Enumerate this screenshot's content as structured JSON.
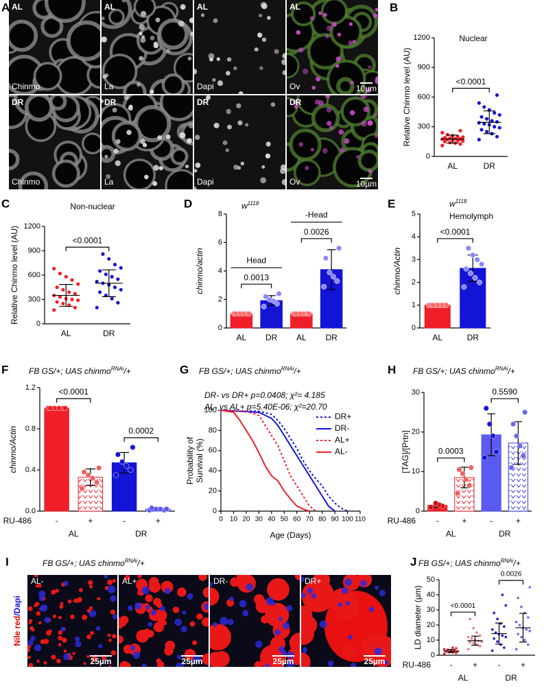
{
  "images": [
    {
      "panel": "A",
      "rows": [
        [
          {
            "condition": "AL",
            "channel": "Chinmo"
          },
          {
            "condition": "AL",
            "channel": "La"
          },
          {
            "condition": "AL",
            "channel": "Dapi"
          },
          {
            "condition": "AL",
            "channel": "Ov",
            "scale_bar": "10µm"
          }
        ],
        [
          {
            "condition": "DR",
            "channel": "Chinmo"
          },
          {
            "condition": "DR",
            "channel": "La"
          },
          {
            "condition": "DR",
            "channel": "Dapi"
          },
          {
            "condition": "DR",
            "channel": "Ov",
            "scale_bar": "10µm"
          }
        ]
      ]
    },
    {
      "panel": "I",
      "title": {
        "text": "FB GS/+; UAS chinmo",
        "sup": "RNAi",
        "tail": "/+"
      },
      "stain": [
        "Nile red",
        "/Dapi"
      ],
      "tiles": [
        {
          "condition": "AL-",
          "scale_bar": "25µm"
        },
        {
          "condition": "AL+",
          "scale_bar": "25µm"
        },
        {
          "condition": "DR-",
          "scale_bar": "25µm"
        },
        {
          "condition": "DR+",
          "scale_bar": "25µm"
        }
      ]
    }
  ],
  "chart_data": [
    {
      "type": "dotplot",
      "panel": "B",
      "title": "Nuclear",
      "ylabel": "Relative Chinmo level (AU)",
      "categories": [
        "AL",
        "DR"
      ],
      "points": [
        [
          110,
          125,
          135,
          140,
          150,
          155,
          160,
          165,
          170,
          175,
          175,
          180,
          185,
          190,
          195,
          200,
          210,
          220,
          240,
          260
        ],
        [
          170,
          200,
          230,
          250,
          270,
          290,
          300,
          320,
          330,
          340,
          350,
          360,
          380,
          400,
          420,
          440,
          470,
          500,
          540,
          620
        ]
      ],
      "means": [
        175,
        345
      ],
      "sds": [
        40,
        115
      ],
      "colors": [
        "#f01e28",
        "#1414d6"
      ],
      "ylim": [
        0,
        1200
      ],
      "yticks": [
        0,
        300,
        600,
        900,
        1200
      ],
      "comparisons": [
        {
          "label": "<0.0001",
          "color": "#e00000"
        }
      ]
    },
    {
      "type": "dotplot",
      "panel": "C",
      "title": "Non-nuclear",
      "ylabel": "Relative Chinmo level (AU)",
      "categories": [
        "AL",
        "DR"
      ],
      "points": [
        [
          170,
          200,
          230,
          250,
          270,
          290,
          300,
          310,
          330,
          350,
          370,
          390,
          420,
          450,
          490,
          540,
          580,
          620,
          680
        ],
        [
          200,
          260,
          310,
          350,
          390,
          420,
          450,
          480,
          500,
          520,
          550,
          580,
          610,
          650,
          690,
          730,
          800,
          860
        ]
      ],
      "means": [
        350,
        500
      ],
      "sds": [
        135,
        165
      ],
      "colors": [
        "#f01e28",
        "#1414d6"
      ],
      "ylim": [
        0,
        1200
      ],
      "yticks": [
        0,
        300,
        600,
        900,
        1200
      ],
      "comparisons": [
        {
          "label": "<0.0001",
          "color": "#e00000"
        }
      ]
    },
    {
      "type": "bar",
      "panel": "D",
      "subtitle": {
        "text": "w",
        "sup": "1118"
      },
      "ylabel": "chinmo/actin",
      "categories": [
        "AL",
        "DR",
        "AL",
        "DR"
      ],
      "values": [
        1,
        1.92,
        1,
        4.1
      ],
      "errors": [
        0,
        0.35,
        0,
        1.4
      ],
      "points": [
        [
          1,
          1,
          1,
          1,
          1,
          1
        ],
        [
          1.5,
          1.7,
          1.9,
          2.0,
          2.2,
          2.4
        ],
        [
          1,
          1,
          1,
          1,
          1,
          1
        ],
        [
          2.9,
          3.3,
          3.6,
          3.9,
          4.9,
          5.6
        ]
      ],
      "colors": [
        "#f01e28",
        "#1414d6",
        "#f01e28",
        "#1414d6"
      ],
      "point_colors": [
        "#ff6b6b",
        "#8a8af5",
        "#ff6b6b",
        "#8a8af5"
      ],
      "ylim": [
        0,
        8
      ],
      "yticks": [
        0,
        2,
        4,
        6,
        8
      ],
      "group_labels": [
        "Head",
        "-Head"
      ],
      "comparisons": [
        {
          "label": "0.0013",
          "color": "#e00000"
        },
        {
          "label": "0.0026",
          "color": "#e00000"
        }
      ]
    },
    {
      "type": "bar",
      "panel": "E",
      "subtitle": {
        "text": "w",
        "sup": "1118"
      },
      "title": "Hemolymph",
      "ylabel": "chinmo/Actin",
      "categories": [
        "AL",
        "DR"
      ],
      "values": [
        1,
        2.62
      ],
      "errors": [
        0,
        0.58
      ],
      "points": [
        [
          1,
          1,
          1,
          1,
          1,
          1,
          1,
          1,
          1
        ],
        [
          1.8,
          2.0,
          2.2,
          2.4,
          2.6,
          2.8,
          3.0,
          3.2,
          3.5
        ]
      ],
      "colors": [
        "#f01e28",
        "#1414d6"
      ],
      "point_colors": [
        "#ff6b6b",
        "#8a8af5"
      ],
      "ylim": [
        0,
        5
      ],
      "yticks": [
        0,
        1,
        2,
        3,
        4,
        5
      ],
      "comparisons": [
        {
          "label": "<0.0001",
          "color": "#e00000"
        }
      ]
    },
    {
      "type": "bar",
      "panel": "F",
      "title": {
        "text": "FB GS/+; UAS chinmo",
        "sup": "RNAi",
        "tail": "/+"
      },
      "ylabel": "chinmo/Actin",
      "categories": [
        "-",
        "+",
        "-",
        "+"
      ],
      "xgroups": [
        "AL",
        "DR"
      ],
      "xrow_label": "RU-486",
      "values": [
        1.0,
        0.33,
        0.47,
        0.02
      ],
      "errors": [
        0,
        0.08,
        0.1,
        0.01
      ],
      "points": [
        [
          1,
          1,
          1,
          1,
          1,
          1
        ],
        [
          0.22,
          0.28,
          0.32,
          0.35,
          0.38,
          0.42
        ],
        [
          0.35,
          0.4,
          0.44,
          0.48,
          0.55,
          0.62
        ],
        [
          0.01,
          0.01,
          0.02,
          0.02,
          0.03,
          0.02
        ]
      ],
      "colors": [
        "#f01e28",
        "#f01e28",
        "#1414d6",
        "#1414d6"
      ],
      "point_colors": [
        "#f01e28",
        "#f06060",
        "#1414d6",
        "#5a5af0"
      ],
      "patterns": [
        false,
        true,
        false,
        true
      ],
      "ylim": [
        0,
        1.2
      ],
      "yticks": [
        {
          "value": 0,
          "label": "0.0"
        },
        0.4,
        0.8,
        1.2
      ],
      "comparisons": [
        {
          "label": "<0.0001",
          "color": "#e00000"
        },
        {
          "label": "0.0002",
          "color": "#e00000"
        }
      ]
    },
    {
      "type": "line",
      "panel": "G",
      "title": {
        "text": "FB GS/+; UAS chinmo",
        "sup": "RNAi",
        "tail": "/+"
      },
      "annotations": [
        "DR- vs DR+   p=0.0408; χ²= 4.185",
        "AL- vs AL+  p=5.40E-06; χ²=20.70"
      ],
      "ylabel": [
        "Probability of",
        "Survival (%)"
      ],
      "xlabel": "Age (Days)",
      "xlim": [
        0,
        110
      ],
      "xticks": [
        0,
        10,
        20,
        30,
        40,
        50,
        60,
        70,
        80,
        90,
        100,
        110
      ],
      "ylim": [
        0,
        100
      ],
      "yticks": [
        0,
        20,
        40,
        60,
        80,
        100
      ],
      "legend": "upper right",
      "series": [
        {
          "name": "DR+",
          "color": "#1414d6",
          "dash": true,
          "x": [
            0,
            30,
            40,
            45,
            50,
            55,
            60,
            65,
            70,
            75,
            80,
            85,
            90,
            95,
            100
          ],
          "values": [
            100,
            99,
            96,
            90,
            82,
            72,
            62,
            50,
            40,
            32,
            25,
            15,
            8,
            3,
            0
          ]
        },
        {
          "name": "DR-",
          "color": "#1414d6",
          "dash": false,
          "x": [
            0,
            30,
            40,
            45,
            50,
            55,
            60,
            65,
            70,
            75,
            80,
            85,
            90
          ],
          "values": [
            100,
            98,
            92,
            85,
            75,
            65,
            55,
            45,
            35,
            25,
            15,
            5,
            0
          ]
        },
        {
          "name": "AL+",
          "color": "#f01e28",
          "dash": true,
          "x": [
            0,
            20,
            30,
            35,
            40,
            45,
            50,
            55,
            60,
            65,
            70,
            75
          ],
          "values": [
            100,
            99,
            95,
            85,
            75,
            65,
            50,
            35,
            25,
            15,
            5,
            0
          ]
        },
        {
          "name": "AL-",
          "color": "#f01e28",
          "dash": false,
          "x": [
            0,
            10,
            15,
            20,
            25,
            30,
            35,
            40,
            45,
            50,
            55,
            60,
            65,
            70
          ],
          "values": [
            100,
            98,
            90,
            80,
            70,
            58,
            45,
            35,
            30,
            20,
            12,
            5,
            2,
            0
          ]
        }
      ]
    },
    {
      "type": "bar",
      "panel": "H",
      "title": {
        "text": "FB GS/+; UAS chinmo",
        "sup": "RNAi",
        "tail": "/+"
      },
      "ylabel": "[TAG]/[Prtn]",
      "categories": [
        "-",
        "+",
        "-",
        "+"
      ],
      "xgroups": [
        "AL",
        "DR"
      ],
      "xrow_label": "RU-486",
      "values": [
        1.5,
        8.5,
        19.3,
        17.2
      ],
      "errors": [
        0.5,
        2.6,
        5.3,
        5.4
      ],
      "points": [
        [
          1.0,
          1.3,
          1.6,
          2.0
        ],
        [
          4.5,
          6.5,
          8,
          9.5,
          10.5,
          11
        ],
        [
          13.5,
          15,
          19,
          22,
          26
        ],
        [
          11,
          14,
          16.5,
          19,
          22,
          25
        ]
      ],
      "colors": [
        "#f01e28",
        "#f01e28",
        "#5a5af0",
        "#3a3ae6"
      ],
      "point_colors": [
        "#d01010",
        "#f06060",
        "#1414d6",
        "#6a6af0"
      ],
      "patterns": [
        false,
        true,
        false,
        true
      ],
      "ylim": [
        0,
        30
      ],
      "yticks": [
        0,
        10,
        20,
        30
      ],
      "comparisons": [
        {
          "label": "0.0003",
          "color": "#e00000"
        },
        {
          "label": "0.5590",
          "color": "#000000"
        }
      ]
    },
    {
      "type": "dotplot",
      "panel": "J",
      "title": {
        "text": "FB GS/+; UAS chinmo",
        "sup": "RNAi",
        "tail": "/+"
      },
      "ylabel": "LD diameter (µm)",
      "categories": [
        "-",
        "+",
        "-",
        "+"
      ],
      "xgroups": [
        "AL",
        "DR"
      ],
      "xrow_label": "RU-486",
      "points": [
        [
          1,
          1.5,
          2,
          2,
          2.5,
          2.5,
          3,
          3,
          3.5,
          4,
          4.5,
          5
        ],
        [
          4,
          6,
          7,
          8,
          8.5,
          9,
          9.5,
          10,
          11,
          12,
          13,
          15,
          18,
          24
        ],
        [
          3,
          5,
          7,
          9,
          11,
          12,
          13,
          14,
          15,
          17,
          19,
          21,
          24,
          28,
          33,
          40
        ],
        [
          4,
          7,
          10,
          12,
          14,
          16,
          17,
          18,
          20,
          22,
          25,
          28,
          32,
          38,
          45
        ]
      ],
      "means": [
        2.8,
        9.6,
        14.3,
        18.2
      ],
      "sds": [
        1.1,
        3.0,
        7.0,
        9.5
      ],
      "colors": [
        "#f01e28",
        "#f27a7e",
        "#1414d6",
        "#6a6af0"
      ],
      "ylim": [
        0,
        50
      ],
      "yticks": [
        0,
        10,
        20,
        30,
        40,
        50
      ],
      "comparisons": [
        {
          "label": "<0.0001",
          "color": "#e00000"
        },
        {
          "label": "0.0026",
          "color": "#e00000"
        }
      ]
    }
  ]
}
